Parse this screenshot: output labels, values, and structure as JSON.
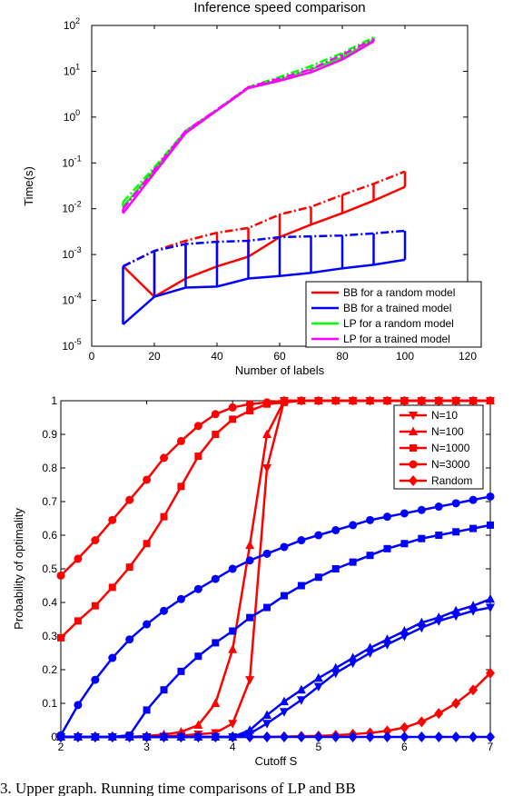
{
  "colors": {
    "red": "#ff0000",
    "blue": "#0000ff",
    "green": "#00ff00",
    "magenta": "#ff00ff"
  },
  "caption": "3. Upper graph. Running time comparisons of LP and BB",
  "chart_data": [
    {
      "type": "line",
      "title": "Inference speed comparison",
      "xlabel": "Number of labels",
      "ylabel": "Time(s)",
      "xlim": [
        0,
        120
      ],
      "ylim": [
        1e-05,
        100
      ],
      "yscale": "log",
      "xticks": [
        0,
        20,
        40,
        60,
        80,
        100,
        120
      ],
      "yticks": [
        {
          "value": 1e-05,
          "base": "10",
          "exp": "-5"
        },
        {
          "value": 0.0001,
          "base": "10",
          "exp": "-4"
        },
        {
          "value": 0.001,
          "base": "10",
          "exp": "-3"
        },
        {
          "value": 0.01,
          "base": "10",
          "exp": "-2"
        },
        {
          "value": 0.1,
          "base": "10",
          "exp": "-1"
        },
        {
          "value": 1,
          "base": "10",
          "exp": "0"
        },
        {
          "value": 10,
          "base": "10",
          "exp": "1"
        },
        {
          "value": 100,
          "base": "10",
          "exp": "2"
        }
      ],
      "legend_position": "bottom-right",
      "series": [
        {
          "name": "BB for a random model",
          "color": "#ff0000",
          "x": [
            10,
            20,
            30,
            40,
            50,
            60,
            70,
            80,
            90,
            100
          ],
          "lower": [
            0.00056,
            0.00012,
            0.0003,
            0.00055,
            0.0009,
            0.0024,
            0.0045,
            0.008,
            0.015,
            0.03
          ],
          "upper": [
            0.00056,
            0.0012,
            0.002,
            0.003,
            0.0038,
            0.0075,
            0.011,
            0.02,
            0.035,
            0.065
          ]
        },
        {
          "name": "BB for a trained model",
          "color": "#0000ff",
          "x": [
            10,
            20,
            30,
            40,
            50,
            60,
            70,
            80,
            90,
            100
          ],
          "lower": [
            3e-05,
            0.00012,
            0.00019,
            0.0002,
            0.0003,
            0.00034,
            0.0004,
            0.0005,
            0.0006,
            0.00077
          ],
          "upper": [
            0.00055,
            0.0012,
            0.0017,
            0.0019,
            0.002,
            0.0024,
            0.0025,
            0.0026,
            0.0029,
            0.0033
          ]
        },
        {
          "name": "LP for a random model",
          "color": "#00ff00",
          "x": [
            10,
            20,
            30,
            40,
            50,
            60,
            70,
            80,
            90
          ],
          "lower": [
            0.011,
            0.07,
            0.5,
            1.4,
            4.3,
            6.5,
            11,
            20,
            48
          ],
          "upper": [
            0.014,
            0.08,
            0.5,
            1.45,
            4.5,
            7.5,
            13,
            25,
            55
          ]
        },
        {
          "name": "LP for a trained model",
          "color": "#ff00ff",
          "x": [
            10,
            20,
            30,
            40,
            50,
            60,
            70,
            80,
            90
          ],
          "lower": [
            0.008,
            0.06,
            0.45,
            1.4,
            4.3,
            6.2,
            9.5,
            18,
            45
          ],
          "upper": [
            0.01,
            0.07,
            0.5,
            1.45,
            4.5,
            7,
            11,
            23,
            50
          ]
        }
      ]
    },
    {
      "type": "line",
      "title": "",
      "xlabel": "Cutoff S",
      "ylabel": "Probability of optimality",
      "xlim": [
        2,
        7
      ],
      "ylim": [
        0,
        1
      ],
      "xticks": [
        2,
        3,
        4,
        5,
        6,
        7
      ],
      "yticks": [
        0,
        0.1,
        0.2,
        0.3,
        0.4,
        0.5,
        0.6,
        0.7,
        0.8,
        0.9,
        1
      ],
      "legend_position": "top-right",
      "legend": [
        {
          "label": "N=10",
          "marker": "triangle-down"
        },
        {
          "label": "N=100",
          "marker": "triangle-up"
        },
        {
          "label": "N=1000",
          "marker": "square"
        },
        {
          "label": "N=3000",
          "marker": "circle"
        },
        {
          "label": "Random",
          "marker": "diamond"
        }
      ],
      "x": [
        2,
        2.2,
        2.4,
        2.6,
        2.8,
        3,
        3.2,
        3.4,
        3.6,
        3.8,
        4,
        4.2,
        4.4,
        4.6,
        4.8,
        5,
        5.2,
        5.4,
        5.6,
        5.8,
        6,
        6.2,
        6.4,
        6.6,
        6.8,
        7
      ],
      "series": [
        {
          "label": "N=3000 (red)",
          "color": "#ff0000",
          "marker": "circle",
          "values": [
            0.48,
            0.53,
            0.585,
            0.645,
            0.705,
            0.765,
            0.83,
            0.88,
            0.925,
            0.96,
            0.98,
            0.99,
            0.995,
            1,
            1,
            1,
            1,
            1,
            1,
            1,
            1,
            1,
            1,
            1,
            1,
            1
          ]
        },
        {
          "label": "N=1000 (red)",
          "color": "#ff0000",
          "marker": "square",
          "values": [
            0.295,
            0.345,
            0.39,
            0.445,
            0.505,
            0.575,
            0.655,
            0.745,
            0.835,
            0.9,
            0.945,
            0.97,
            0.99,
            0.995,
            1,
            1,
            1,
            1,
            1,
            1,
            1,
            1,
            1,
            1,
            1,
            1
          ]
        },
        {
          "label": "N=100 (red)",
          "color": "#ff0000",
          "marker": "triangle-up",
          "values": [
            0,
            0,
            0,
            0,
            0,
            0.003,
            0.007,
            0.015,
            0.035,
            0.1,
            0.26,
            0.57,
            0.9,
            1,
            1,
            1,
            1,
            1,
            1,
            1,
            1,
            1,
            1,
            1,
            1,
            1
          ]
        },
        {
          "label": "N=10 (red)",
          "color": "#ff0000",
          "marker": "triangle-down",
          "values": [
            0,
            0,
            0,
            0,
            0,
            0,
            0.002,
            0.004,
            0.008,
            0.012,
            0.04,
            0.17,
            0.8,
            1,
            1,
            1,
            1,
            1,
            1,
            1,
            1,
            1,
            1,
            1,
            1,
            1
          ]
        },
        {
          "label": "Random (red)",
          "color": "#ff0000",
          "marker": "diamond",
          "values": [
            0,
            0,
            0,
            0,
            0,
            0,
            0,
            0,
            0,
            0,
            0,
            0,
            0,
            0.001,
            0.002,
            0.003,
            0.005,
            0.008,
            0.012,
            0.018,
            0.028,
            0.045,
            0.07,
            0.1,
            0.14,
            0.19
          ]
        },
        {
          "label": "N=3000 (blue)",
          "color": "#0000ff",
          "marker": "circle",
          "values": [
            0.005,
            0.095,
            0.17,
            0.235,
            0.29,
            0.335,
            0.375,
            0.41,
            0.44,
            0.47,
            0.5,
            0.525,
            0.545,
            0.565,
            0.585,
            0.6,
            0.615,
            0.63,
            0.645,
            0.655,
            0.665,
            0.675,
            0.685,
            0.695,
            0.705,
            0.715
          ]
        },
        {
          "label": "N=1000 (blue)",
          "color": "#0000ff",
          "marker": "square",
          "values": [
            0,
            0,
            0,
            0,
            0.005,
            0.08,
            0.14,
            0.195,
            0.24,
            0.28,
            0.315,
            0.355,
            0.385,
            0.42,
            0.45,
            0.475,
            0.5,
            0.52,
            0.54,
            0.56,
            0.575,
            0.59,
            0.6,
            0.61,
            0.62,
            0.63
          ]
        },
        {
          "label": "N=100 (blue)",
          "color": "#0000ff",
          "marker": "triangle-up",
          "values": [
            0,
            0,
            0,
            0,
            0,
            0,
            0,
            0,
            0,
            0,
            0,
            0.02,
            0.065,
            0.105,
            0.14,
            0.175,
            0.205,
            0.235,
            0.265,
            0.29,
            0.315,
            0.34,
            0.355,
            0.375,
            0.39,
            0.41
          ]
        },
        {
          "label": "N=10 (blue)",
          "color": "#0000ff",
          "marker": "triangle-down",
          "values": [
            0,
            0,
            0,
            0,
            0,
            0,
            0,
            0,
            0,
            0,
            0,
            0.01,
            0.04,
            0.075,
            0.11,
            0.15,
            0.19,
            0.22,
            0.25,
            0.275,
            0.3,
            0.325,
            0.345,
            0.36,
            0.375,
            0.385
          ]
        },
        {
          "label": "Random (blue)",
          "color": "#0000ff",
          "marker": "diamond",
          "values": [
            0,
            0,
            0,
            0,
            0,
            0,
            0,
            0,
            0,
            0,
            0,
            0,
            0,
            0,
            0,
            0,
            0,
            0,
            0,
            0,
            0,
            0,
            0,
            0,
            0,
            0
          ]
        }
      ]
    }
  ]
}
